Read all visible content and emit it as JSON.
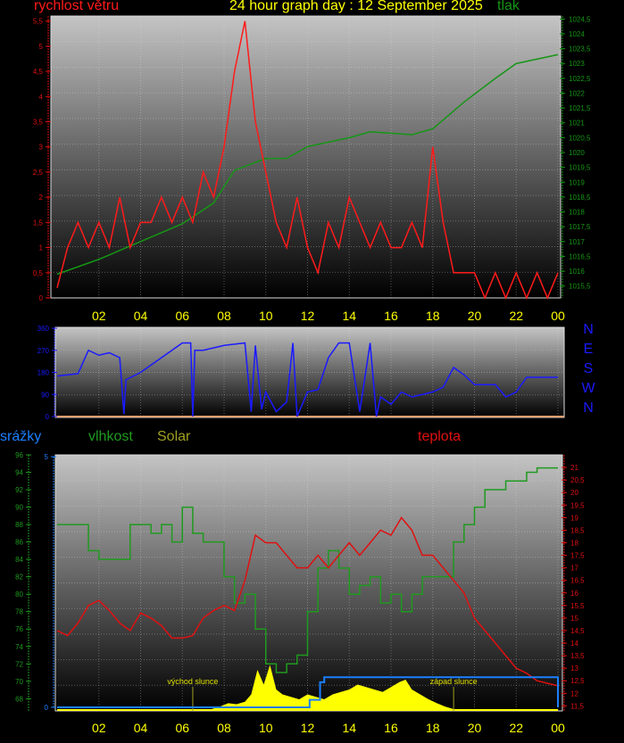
{
  "title": "24 hour graph day : 12 September 2025",
  "colors": {
    "wind": "#ff1a1a",
    "pressure": "#159615",
    "direction": "#1a1aff",
    "humidity": "#1f9a1f",
    "temperature": "#e01010",
    "rain": "#1a80ff",
    "solar": "#ffff00",
    "title": "#ffff00"
  },
  "chart_data": [
    {
      "type": "line",
      "title": "24 hour graph day : 12 September 2025",
      "x_ticks": [
        "02",
        "04",
        "06",
        "08",
        "10",
        "12",
        "14",
        "16",
        "18",
        "20",
        "22",
        "00"
      ],
      "grid": true,
      "series": [
        {
          "name": "rychlost větru",
          "axis": "left",
          "ylim": [
            0,
            5.6
          ],
          "y_ticks": [
            "0",
            "0,5",
            "1",
            "1,5",
            "2",
            "2,5",
            "3",
            "3,5",
            "4",
            "4,5",
            "5",
            "5,5"
          ],
          "x_hours": [
            0,
            0.5,
            1,
            1.5,
            2,
            2.5,
            3,
            3.5,
            4,
            4.5,
            5,
            5.5,
            6,
            6.5,
            7,
            7.5,
            8,
            8.5,
            9,
            9.5,
            10,
            10.5,
            11,
            11.5,
            12,
            12.5,
            13,
            13.5,
            14,
            14.5,
            15,
            15.5,
            16,
            16.5,
            17,
            17.5,
            18,
            18.5,
            19,
            19.5,
            20,
            20.5,
            21,
            21.5,
            22,
            22.5,
            23,
            23.5,
            24
          ],
          "values": [
            0.2,
            1,
            1.5,
            1,
            1.5,
            1,
            2,
            1,
            1.5,
            1.5,
            2,
            1.5,
            2,
            1.5,
            2.5,
            2,
            3,
            4.5,
            5.5,
            3.5,
            2.5,
            1.5,
            1,
            2,
            1,
            0.5,
            1.5,
            1,
            2,
            1.5,
            1,
            1.5,
            1,
            1,
            1.5,
            1,
            3,
            1.5,
            0.5,
            0.5,
            0.5,
            0,
            0.5,
            0,
            0.5,
            0,
            0.5,
            0,
            0.5
          ]
        },
        {
          "name": "tlak",
          "axis": "right",
          "ylim": [
            1015.1,
            1024.6
          ],
          "y_ticks": [
            "1015,5",
            "1016",
            "1016,5",
            "1017",
            "1017,5",
            "1018",
            "1018,5",
            "1019",
            "1019,5",
            "1020",
            "1020,5",
            "1021",
            "1021,5",
            "1022",
            "1022,5",
            "1023",
            "1023,5",
            "1024",
            "1024,5"
          ],
          "x_hours": [
            0,
            2,
            4,
            6,
            7.5,
            8.5,
            10,
            11,
            12,
            14,
            15,
            17,
            18,
            19.5,
            21,
            22,
            24
          ],
          "values": [
            1015.9,
            1016.4,
            1017,
            1017.6,
            1018.3,
            1019.4,
            1019.8,
            1019.8,
            1020.2,
            1020.5,
            1020.7,
            1020.6,
            1020.8,
            1021.7,
            1022.5,
            1023,
            1023.3
          ]
        }
      ]
    },
    {
      "type": "line",
      "x_ticks": [],
      "ylim": [
        0,
        360
      ],
      "y_ticks": [
        "0",
        "90",
        "180",
        "270",
        "360"
      ],
      "direction_labels": [
        "N",
        "W",
        "S",
        "E",
        "N"
      ],
      "series": [
        {
          "x_hours": [
            0,
            0.5,
            1,
            1.5,
            2,
            2.5,
            3,
            3.2,
            3.3,
            4,
            5,
            6,
            6.4,
            6.5,
            6.6,
            7,
            8,
            9,
            9.3,
            9.5,
            9.8,
            10,
            10.5,
            11,
            11.3,
            11.5,
            12,
            12.5,
            13,
            13.5,
            14,
            14.5,
            15,
            15.3,
            15.5,
            16,
            16.5,
            17,
            17.5,
            18,
            18.5,
            19,
            19.5,
            20,
            21,
            21.5,
            22,
            22.5,
            23,
            24
          ],
          "values": [
            165,
            170,
            175,
            270,
            250,
            260,
            240,
            10,
            150,
            180,
            240,
            300,
            300,
            0,
            270,
            270,
            290,
            300,
            20,
            290,
            30,
            100,
            20,
            60,
            300,
            0,
            100,
            110,
            240,
            300,
            300,
            20,
            300,
            0,
            80,
            50,
            100,
            80,
            90,
            100,
            120,
            200,
            170,
            130,
            130,
            80,
            100,
            160,
            160,
            160
          ]
        }
      ]
    },
    {
      "type": "line",
      "x_ticks": [
        "02",
        "04",
        "06",
        "08",
        "10",
        "12",
        "14",
        "16",
        "18",
        "20",
        "22",
        "00"
      ],
      "grid": true,
      "annotations": [
        "východ slunce",
        "západ slunce"
      ],
      "series": [
        {
          "name": "srážky",
          "axis": "left-inner",
          "ylim": [
            0,
            5
          ],
          "y_ticks": [
            "0",
            "5"
          ],
          "x_hours": [
            0,
            12,
            12.1,
            12.5,
            12.6,
            12.8,
            23.9,
            24
          ],
          "values": [
            0,
            0,
            0.15,
            0.15,
            0.5,
            0.6,
            0.6,
            0
          ]
        },
        {
          "name": "vlhkost",
          "axis": "left-outer",
          "ylim": [
            66.6,
            96
          ],
          "y_ticks": [
            "68",
            "70",
            "72",
            "74",
            "76",
            "78",
            "80",
            "82",
            "84",
            "86",
            "88",
            "90",
            "92",
            "94",
            "96"
          ],
          "x_hours": [
            0,
            1,
            1.5,
            2,
            3,
            3.5,
            4,
            4.5,
            5,
            5.5,
            6,
            6.5,
            7,
            7.5,
            8,
            8.5,
            9,
            9.5,
            10,
            10.5,
            11,
            11.5,
            12,
            12.5,
            13,
            13.5,
            14,
            14.5,
            15,
            15.5,
            16,
            16.5,
            17,
            17.5,
            18,
            18.5,
            19,
            19.5,
            20,
            20.5,
            21,
            21.5,
            22,
            22.5,
            23,
            24
          ],
          "values": [
            88,
            88,
            85,
            84,
            84,
            88,
            88,
            87,
            88,
            86,
            90,
            87,
            86,
            86,
            82,
            79,
            80,
            76,
            72,
            71,
            72,
            73,
            78,
            83,
            85,
            83,
            80,
            81,
            82,
            79,
            80,
            78,
            80,
            82,
            82,
            82,
            86,
            88,
            90,
            92,
            92,
            93,
            93,
            94,
            94.5,
            94.5
          ]
        },
        {
          "name": "Solar",
          "axis": "none",
          "units": "relative",
          "x_hours": [
            0,
            7.4,
            7.8,
            8.2,
            8.6,
            9,
            9.3,
            9.6,
            9.9,
            10.2,
            10.5,
            10.8,
            11.2,
            11.6,
            12,
            12.4,
            12.8,
            13.2,
            13.6,
            14,
            14.4,
            14.8,
            15.2,
            15.6,
            16,
            16.4,
            16.7,
            17,
            17.4,
            17.8,
            18.2,
            18.6,
            19,
            24
          ],
          "values": [
            0,
            0,
            0.05,
            0.12,
            0.1,
            0.15,
            0.3,
            0.8,
            0.5,
            0.9,
            0.4,
            0.3,
            0.25,
            0.2,
            0.3,
            0.25,
            0.2,
            0.3,
            0.35,
            0.4,
            0.5,
            0.45,
            0.4,
            0.35,
            0.45,
            0.55,
            0.6,
            0.4,
            0.3,
            0.2,
            0.12,
            0.05,
            0,
            0
          ]
        },
        {
          "name": "teplota",
          "axis": "right",
          "ylim": [
            11.3,
            21.5
          ],
          "y_ticks": [
            "11,5",
            "12",
            "12,5",
            "13",
            "13,5",
            "14",
            "14,5",
            "15",
            "15,5",
            "16",
            "16,5",
            "17",
            "17,5",
            "18",
            "18,5",
            "19",
            "19,5",
            "20",
            "20,5",
            "21"
          ],
          "x_hours": [
            0,
            0.5,
            1,
            1.5,
            2,
            2.5,
            3,
            3.5,
            4,
            4.5,
            5,
            5.5,
            6,
            6.5,
            7,
            7.5,
            8,
            8.5,
            9,
            9.5,
            10,
            10.5,
            11,
            11.5,
            12,
            12.5,
            13,
            13.5,
            14,
            14.5,
            15,
            15.5,
            16,
            16.5,
            17,
            17.5,
            18,
            18.5,
            19,
            19.5,
            20,
            20.5,
            21,
            21.5,
            22,
            22.5,
            23,
            24
          ],
          "values": [
            14.5,
            14.3,
            14.8,
            15.5,
            15.7,
            15.3,
            14.8,
            14.5,
            15.2,
            15,
            14.7,
            14.2,
            14.2,
            14.3,
            15,
            15.3,
            15.5,
            15.3,
            16.5,
            18.3,
            18,
            18,
            17.5,
            17,
            17,
            17.5,
            17,
            17.5,
            18,
            17.5,
            18,
            18.5,
            18.3,
            19,
            18.5,
            17.5,
            17.5,
            17,
            16.5,
            16,
            15,
            14.5,
            14,
            13.5,
            13,
            12.8,
            12.5,
            12.3
          ]
        }
      ]
    }
  ]
}
